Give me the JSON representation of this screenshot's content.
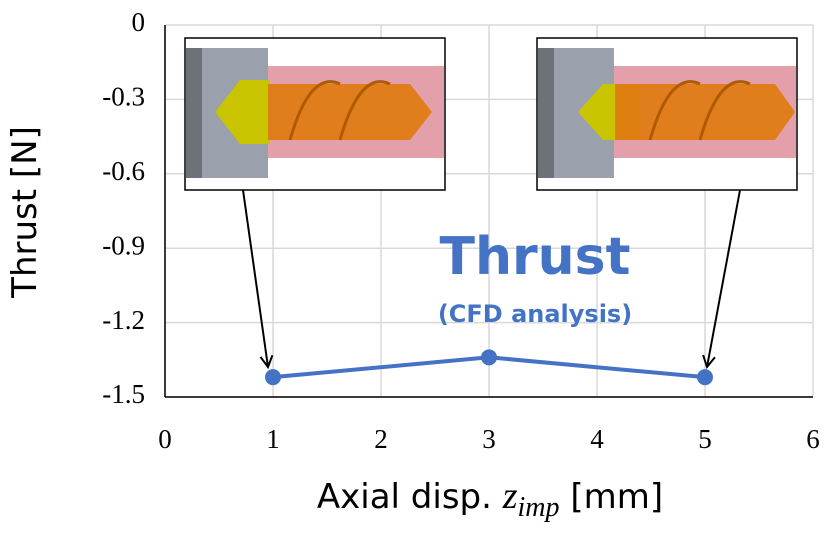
{
  "chart_data": {
    "type": "line",
    "y_label": "Thrust [N]",
    "x_label": [
      "Axial disp. ",
      "z",
      "imp",
      " [mm]"
    ],
    "annotation": [
      "Thrust",
      "(CFD analysis)"
    ],
    "x": [
      1,
      3,
      5
    ],
    "values": [
      -1.42,
      -1.34,
      -1.42
    ],
    "color": "#4472c4",
    "xlim": [
      0,
      6
    ],
    "xticks": [
      0,
      1,
      2,
      3,
      4,
      5,
      6
    ],
    "ylim": [
      -1.5,
      0
    ],
    "yticks": [
      0,
      -0.3,
      -0.6,
      -0.9,
      -1.2,
      -1.5
    ],
    "grid": true
  }
}
